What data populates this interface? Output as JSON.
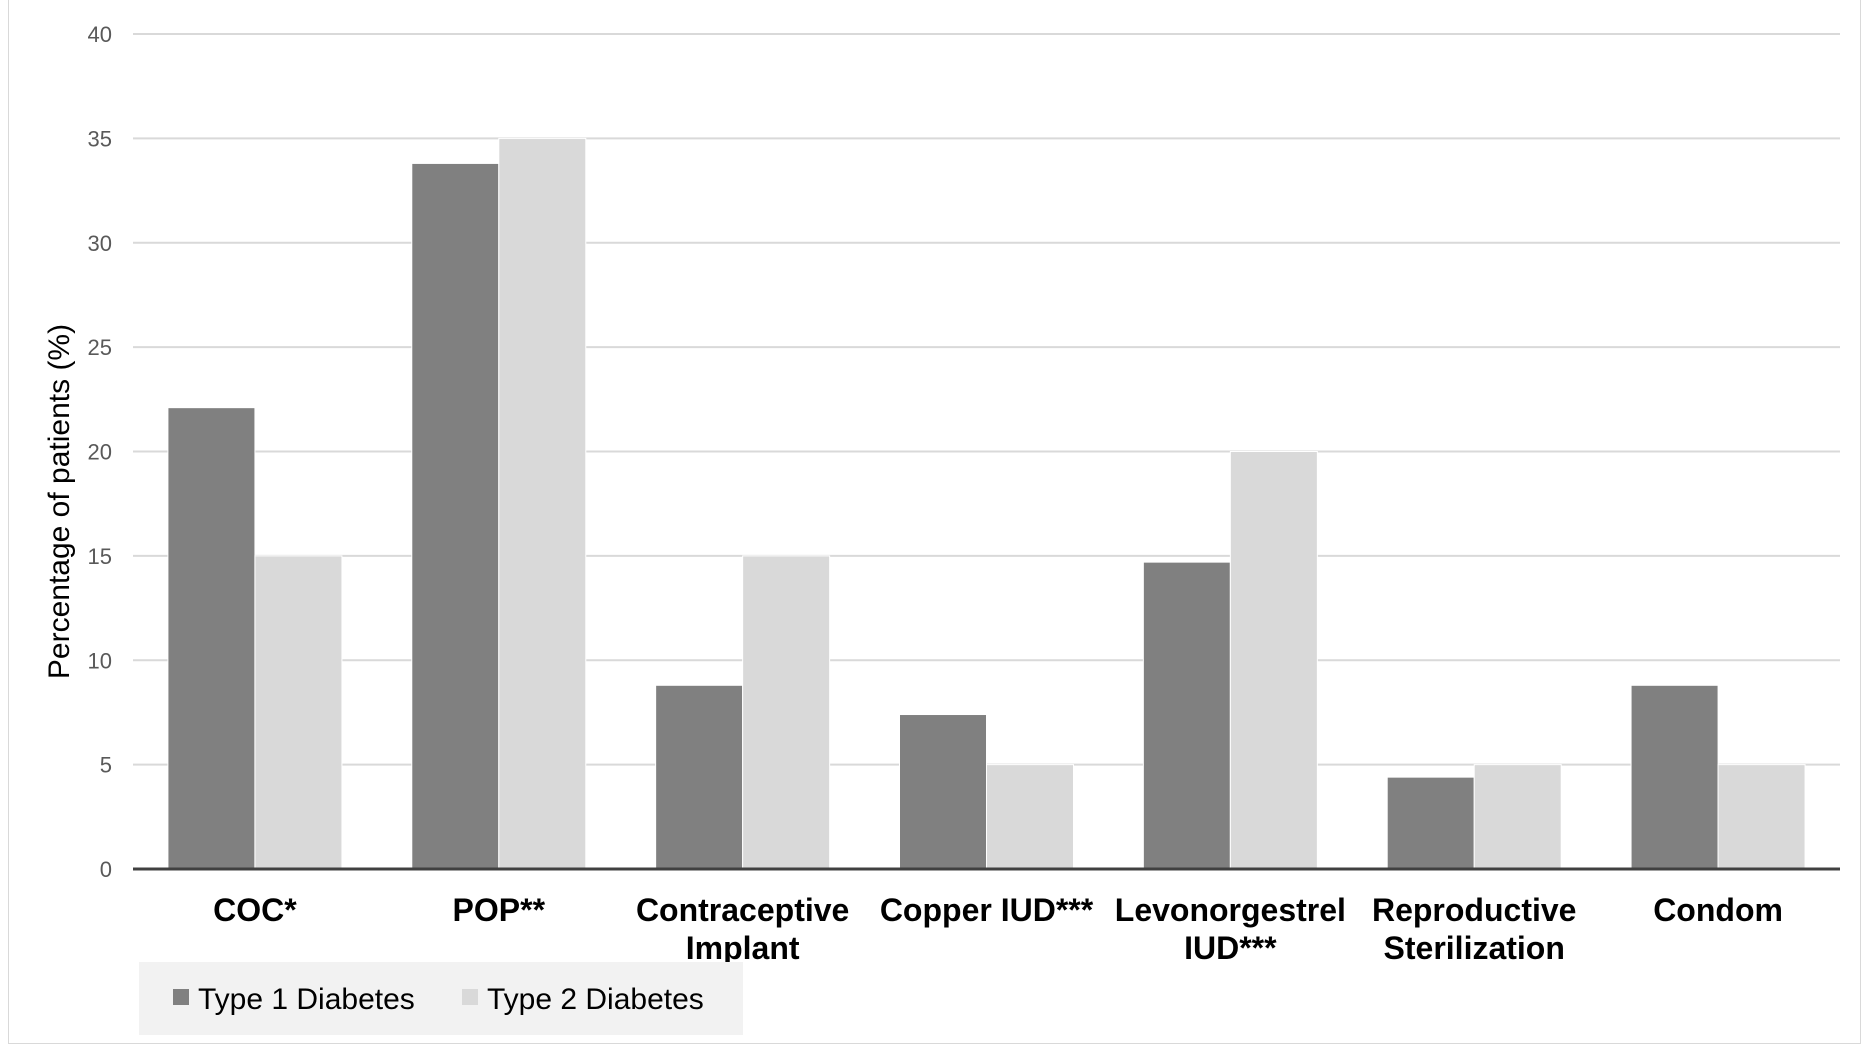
{
  "chart_data": {
    "type": "bar",
    "title": "",
    "xlabel": "",
    "ylabel": "Percentage of patients (%)",
    "ylim": [
      0,
      40
    ],
    "yticks": [
      0,
      5,
      10,
      15,
      20,
      25,
      30,
      35,
      40
    ],
    "grid": true,
    "legend_position": "bottom-left",
    "categories": [
      [
        "COC*"
      ],
      [
        "POP**"
      ],
      [
        "Contraceptive",
        "Implant"
      ],
      [
        "Copper IUD***"
      ],
      [
        "Levonorgestrel",
        "IUD***"
      ],
      [
        "Reproductive",
        "Sterilization"
      ],
      [
        "Condom"
      ]
    ],
    "series": [
      {
        "name": "Type 1 Diabetes",
        "color": "#808080",
        "values": [
          22.1,
          33.8,
          8.8,
          7.4,
          14.7,
          4.4,
          8.8
        ]
      },
      {
        "name": "Type 2 Diabetes",
        "color": "#d9d9d9",
        "values": [
          15,
          35,
          15,
          5,
          20,
          5,
          5
        ]
      }
    ]
  }
}
